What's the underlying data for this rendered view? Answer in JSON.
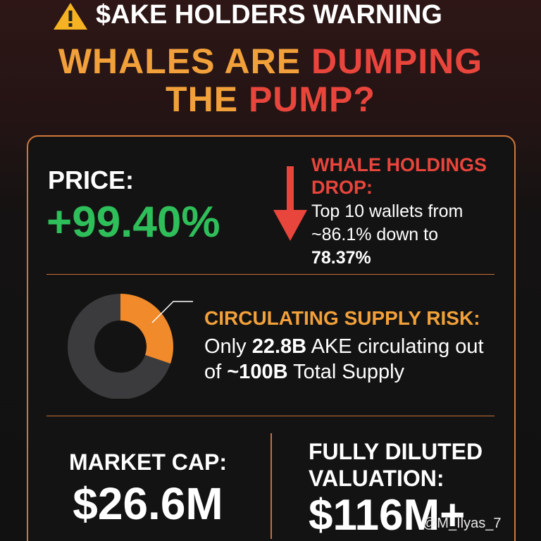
{
  "header": {
    "title": "$AKE HOLDERS WARNING"
  },
  "headline": {
    "line1": [
      "WHALES ARE",
      "DUMPING"
    ],
    "line2": [
      "THE",
      "PUMP?"
    ]
  },
  "price": {
    "label": "PRICE:",
    "value": "+99.40%"
  },
  "whale": {
    "title": "WHALE HOLDINGS DROP:",
    "body": "Top 10 wallets from ~86.1% down to",
    "highlight": "78.37%"
  },
  "supply": {
    "title": "CIRCULATING SUPPLY RISK:",
    "parts": [
      "Only",
      "22.8B",
      "AKE circulating out of",
      "~100B",
      "Total Supply"
    ]
  },
  "market_cap": {
    "label": "MARKET CAP:",
    "value": "$26.6M"
  },
  "fdv": {
    "label": "FULLY DILUTED VALUATION:",
    "value": "$116M+"
  },
  "watermark": "@M_Ilyas_7"
}
